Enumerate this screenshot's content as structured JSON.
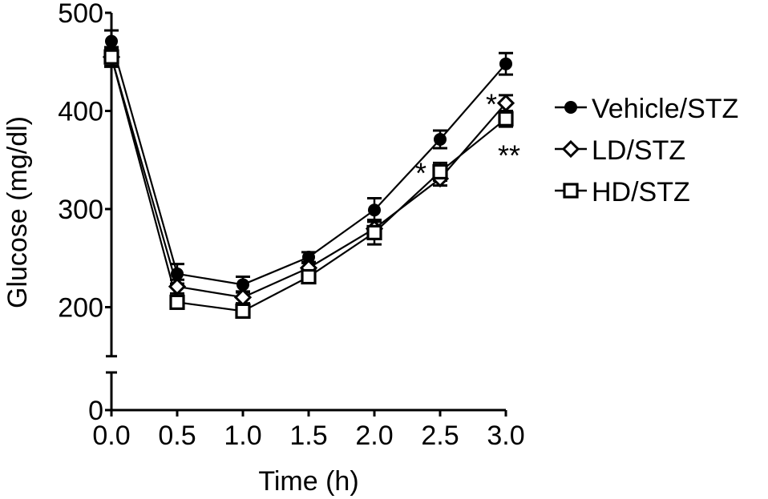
{
  "chart_data": {
    "type": "line",
    "title": "",
    "xlabel": "Time (h)",
    "ylabel": "Glucose (mg/dl)",
    "x": [
      0.0,
      0.5,
      1.0,
      1.5,
      2.0,
      2.5,
      3.0
    ],
    "x_tick_labels": [
      "0.0",
      "0.5",
      "1.0",
      "1.5",
      "2.0",
      "2.5",
      "3.0"
    ],
    "y_tick_labels": [
      "0",
      "200",
      "300",
      "400",
      "500"
    ],
    "y_ticks": [
      0,
      200,
      300,
      400,
      500
    ],
    "xlim": [
      0,
      3
    ],
    "ylim": [
      0,
      500
    ],
    "y_axis_break": [
      150,
      165
    ],
    "grid": false,
    "legend_position": "right",
    "series": [
      {
        "name": "Vehicle/STZ",
        "marker": "filled-circle",
        "values": [
          471,
          234,
          223,
          251,
          299,
          371,
          448
        ],
        "errors": [
          11,
          10,
          8,
          5,
          12,
          9,
          11
        ]
      },
      {
        "name": "LD/STZ",
        "marker": "open-diamond",
        "values": [
          455,
          221,
          210,
          240,
          280,
          331,
          408
        ],
        "errors": [
          9,
          7,
          6,
          5,
          9,
          7,
          8
        ]
      },
      {
        "name": "HD/STZ",
        "marker": "open-square",
        "values": [
          455,
          205,
          196,
          231,
          276,
          338,
          392
        ],
        "errors": [
          10,
          6,
          6,
          6,
          12,
          9,
          8
        ]
      }
    ],
    "annotations": [
      {
        "text": "*",
        "x": 2.5,
        "series": "HD/STZ"
      },
      {
        "text": "*",
        "x": 3.0,
        "series": "LD/STZ"
      },
      {
        "text": "**",
        "x": 3.0,
        "series": "HD/STZ"
      }
    ]
  }
}
